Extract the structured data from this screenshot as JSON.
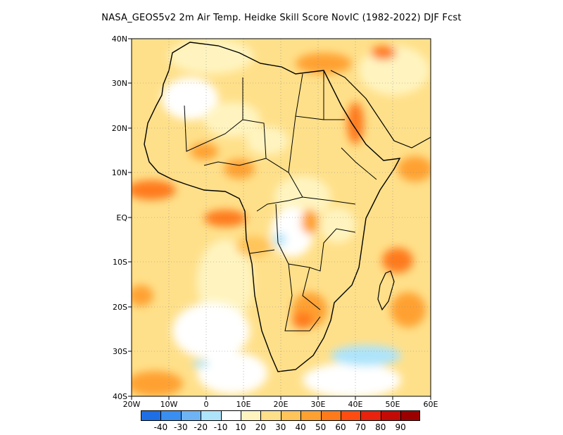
{
  "title": "NASA_GEOS5v2  2m Air Temp. Heidke Skill Score NovIC (1982-2022) DJF Fcst",
  "map": {
    "lon_range": [
      -20,
      60
    ],
    "lat_range": [
      -40,
      40
    ],
    "lon_ticks": [
      "20W",
      "10W",
      "0",
      "10E",
      "20E",
      "30E",
      "40E",
      "50E",
      "60E"
    ],
    "lat_ticks": [
      "40N",
      "30N",
      "20N",
      "10N",
      "EQ",
      "10S",
      "20S",
      "30S",
      "40S"
    ],
    "gridlines": "dotted",
    "region": "Africa"
  },
  "colorbar": {
    "colors": [
      "#1e6fe6",
      "#3a8ef0",
      "#6eb4f5",
      "#aee4fa",
      "#ffffff",
      "#fff4c0",
      "#ffe08a",
      "#ffc45a",
      "#ffa132",
      "#ff7a1a",
      "#ff4d12",
      "#e8220c",
      "#c40a05",
      "#9a0000"
    ],
    "labels": [
      "-40",
      "-30",
      "-20",
      "-10",
      "10",
      "20",
      "30",
      "40",
      "50",
      "60",
      "70",
      "80",
      "90"
    ]
  }
}
